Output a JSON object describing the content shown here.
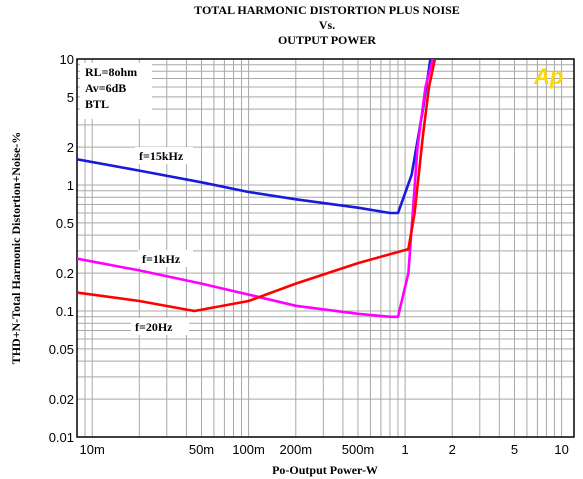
{
  "chart_data": {
    "type": "line",
    "title_lines": [
      "TOTAL HARMONIC DISTORTION PLUS NOISE",
      "Vs.",
      "OUTPUT POWER"
    ],
    "xlabel": "Po-Output Power-W",
    "ylabel": "THD+N-Total Harmonic Distortion+Noise-%",
    "x_scale": "log",
    "y_scale": "log",
    "xlim": [
      0.008,
      12
    ],
    "ylim": [
      0.01,
      10
    ],
    "grid": true,
    "x_ticks": [
      {
        "value": 0.01,
        "label": "10m"
      },
      {
        "value": 0.05,
        "label": "50m"
      },
      {
        "value": 0.1,
        "label": "100m"
      },
      {
        "value": 0.2,
        "label": "200m"
      },
      {
        "value": 0.5,
        "label": "500m"
      },
      {
        "value": 1,
        "label": "1"
      },
      {
        "value": 2,
        "label": "2"
      },
      {
        "value": 5,
        "label": "5"
      },
      {
        "value": 10,
        "label": "10"
      }
    ],
    "y_ticks": [
      {
        "value": 10,
        "label": "10"
      },
      {
        "value": 5,
        "label": "5"
      },
      {
        "value": 2,
        "label": "2"
      },
      {
        "value": 1,
        "label": "1"
      },
      {
        "value": 0.5,
        "label": "0.5"
      },
      {
        "value": 0.2,
        "label": "0.2"
      },
      {
        "value": 0.1,
        "label": "0.1"
      },
      {
        "value": 0.05,
        "label": "0.05"
      },
      {
        "value": 0.02,
        "label": "0.02"
      },
      {
        "value": 0.01,
        "label": "0.01"
      }
    ],
    "conditions": [
      "RL=8ohm",
      "Av=6dB",
      "BTL"
    ],
    "series": [
      {
        "name": "f=15kHz",
        "color": "#1a1adc",
        "x": [
          0.008,
          0.02,
          0.05,
          0.1,
          0.2,
          0.5,
          0.8,
          0.9,
          1.1,
          1.3,
          1.45
        ],
        "y": [
          1.6,
          1.3,
          1.05,
          0.88,
          0.77,
          0.66,
          0.6,
          0.6,
          1.2,
          4.0,
          10
        ]
      },
      {
        "name": "f=1kHz",
        "color": "#ff00ff",
        "x": [
          0.008,
          0.02,
          0.05,
          0.1,
          0.2,
          0.5,
          0.8,
          0.9,
          1.05,
          1.2,
          1.35,
          1.5
        ],
        "y": [
          0.26,
          0.21,
          0.165,
          0.135,
          0.11,
          0.095,
          0.09,
          0.09,
          0.2,
          2.0,
          6.0,
          10
        ]
      },
      {
        "name": "f=20Hz",
        "color": "#ff0000",
        "x": [
          0.008,
          0.02,
          0.045,
          0.1,
          0.2,
          0.5,
          1.05,
          1.15,
          1.3,
          1.42,
          1.55
        ],
        "y": [
          0.14,
          0.12,
          0.1,
          0.12,
          0.165,
          0.24,
          0.31,
          0.6,
          2.5,
          6.0,
          10
        ]
      }
    ],
    "series_labels": [
      {
        "series": "f=15kHz",
        "text": "f=15kHz"
      },
      {
        "series": "f=1kHz",
        "text": "f=1kHz"
      },
      {
        "series": "f=20Hz",
        "text": "f=20Hz"
      }
    ],
    "logo": {
      "text": "Ap",
      "color": "#ffd700"
    }
  }
}
